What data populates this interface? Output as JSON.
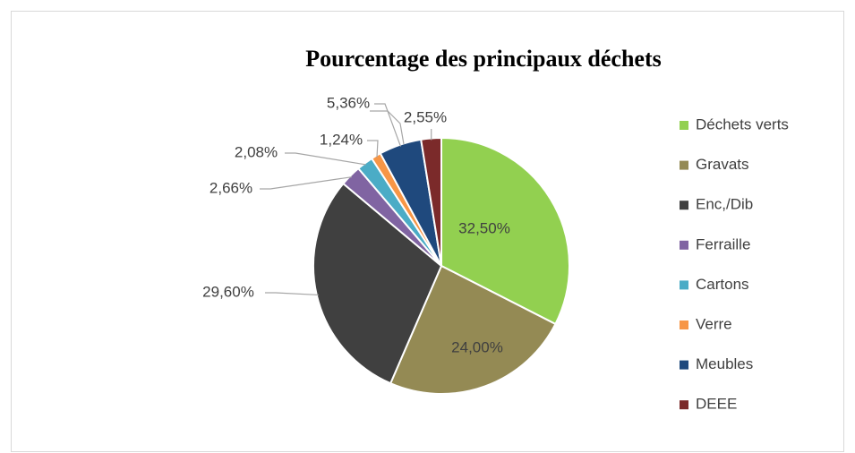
{
  "chart_data": {
    "type": "pie",
    "title": "Pourcentage des principaux déchets",
    "categories": [
      "Déchets verts",
      "Gravats",
      "Enc,/Dib",
      "Ferraille",
      "Cartons",
      "Verre",
      "Meubles",
      "DEEE"
    ],
    "values": [
      32.5,
      24.0,
      29.6,
      2.66,
      2.08,
      1.24,
      5.36,
      2.55
    ],
    "value_labels": [
      "32,50%",
      "24,00%",
      "29,60%",
      "2,66%",
      "2,08%",
      "1,24%",
      "5,36%",
      "2,55%"
    ],
    "colors": [
      "#92d050",
      "#948a54",
      "#404040",
      "#8064a2",
      "#4bacc6",
      "#f79646",
      "#1f497d",
      "#7b2a2a"
    ],
    "legend": "right"
  }
}
